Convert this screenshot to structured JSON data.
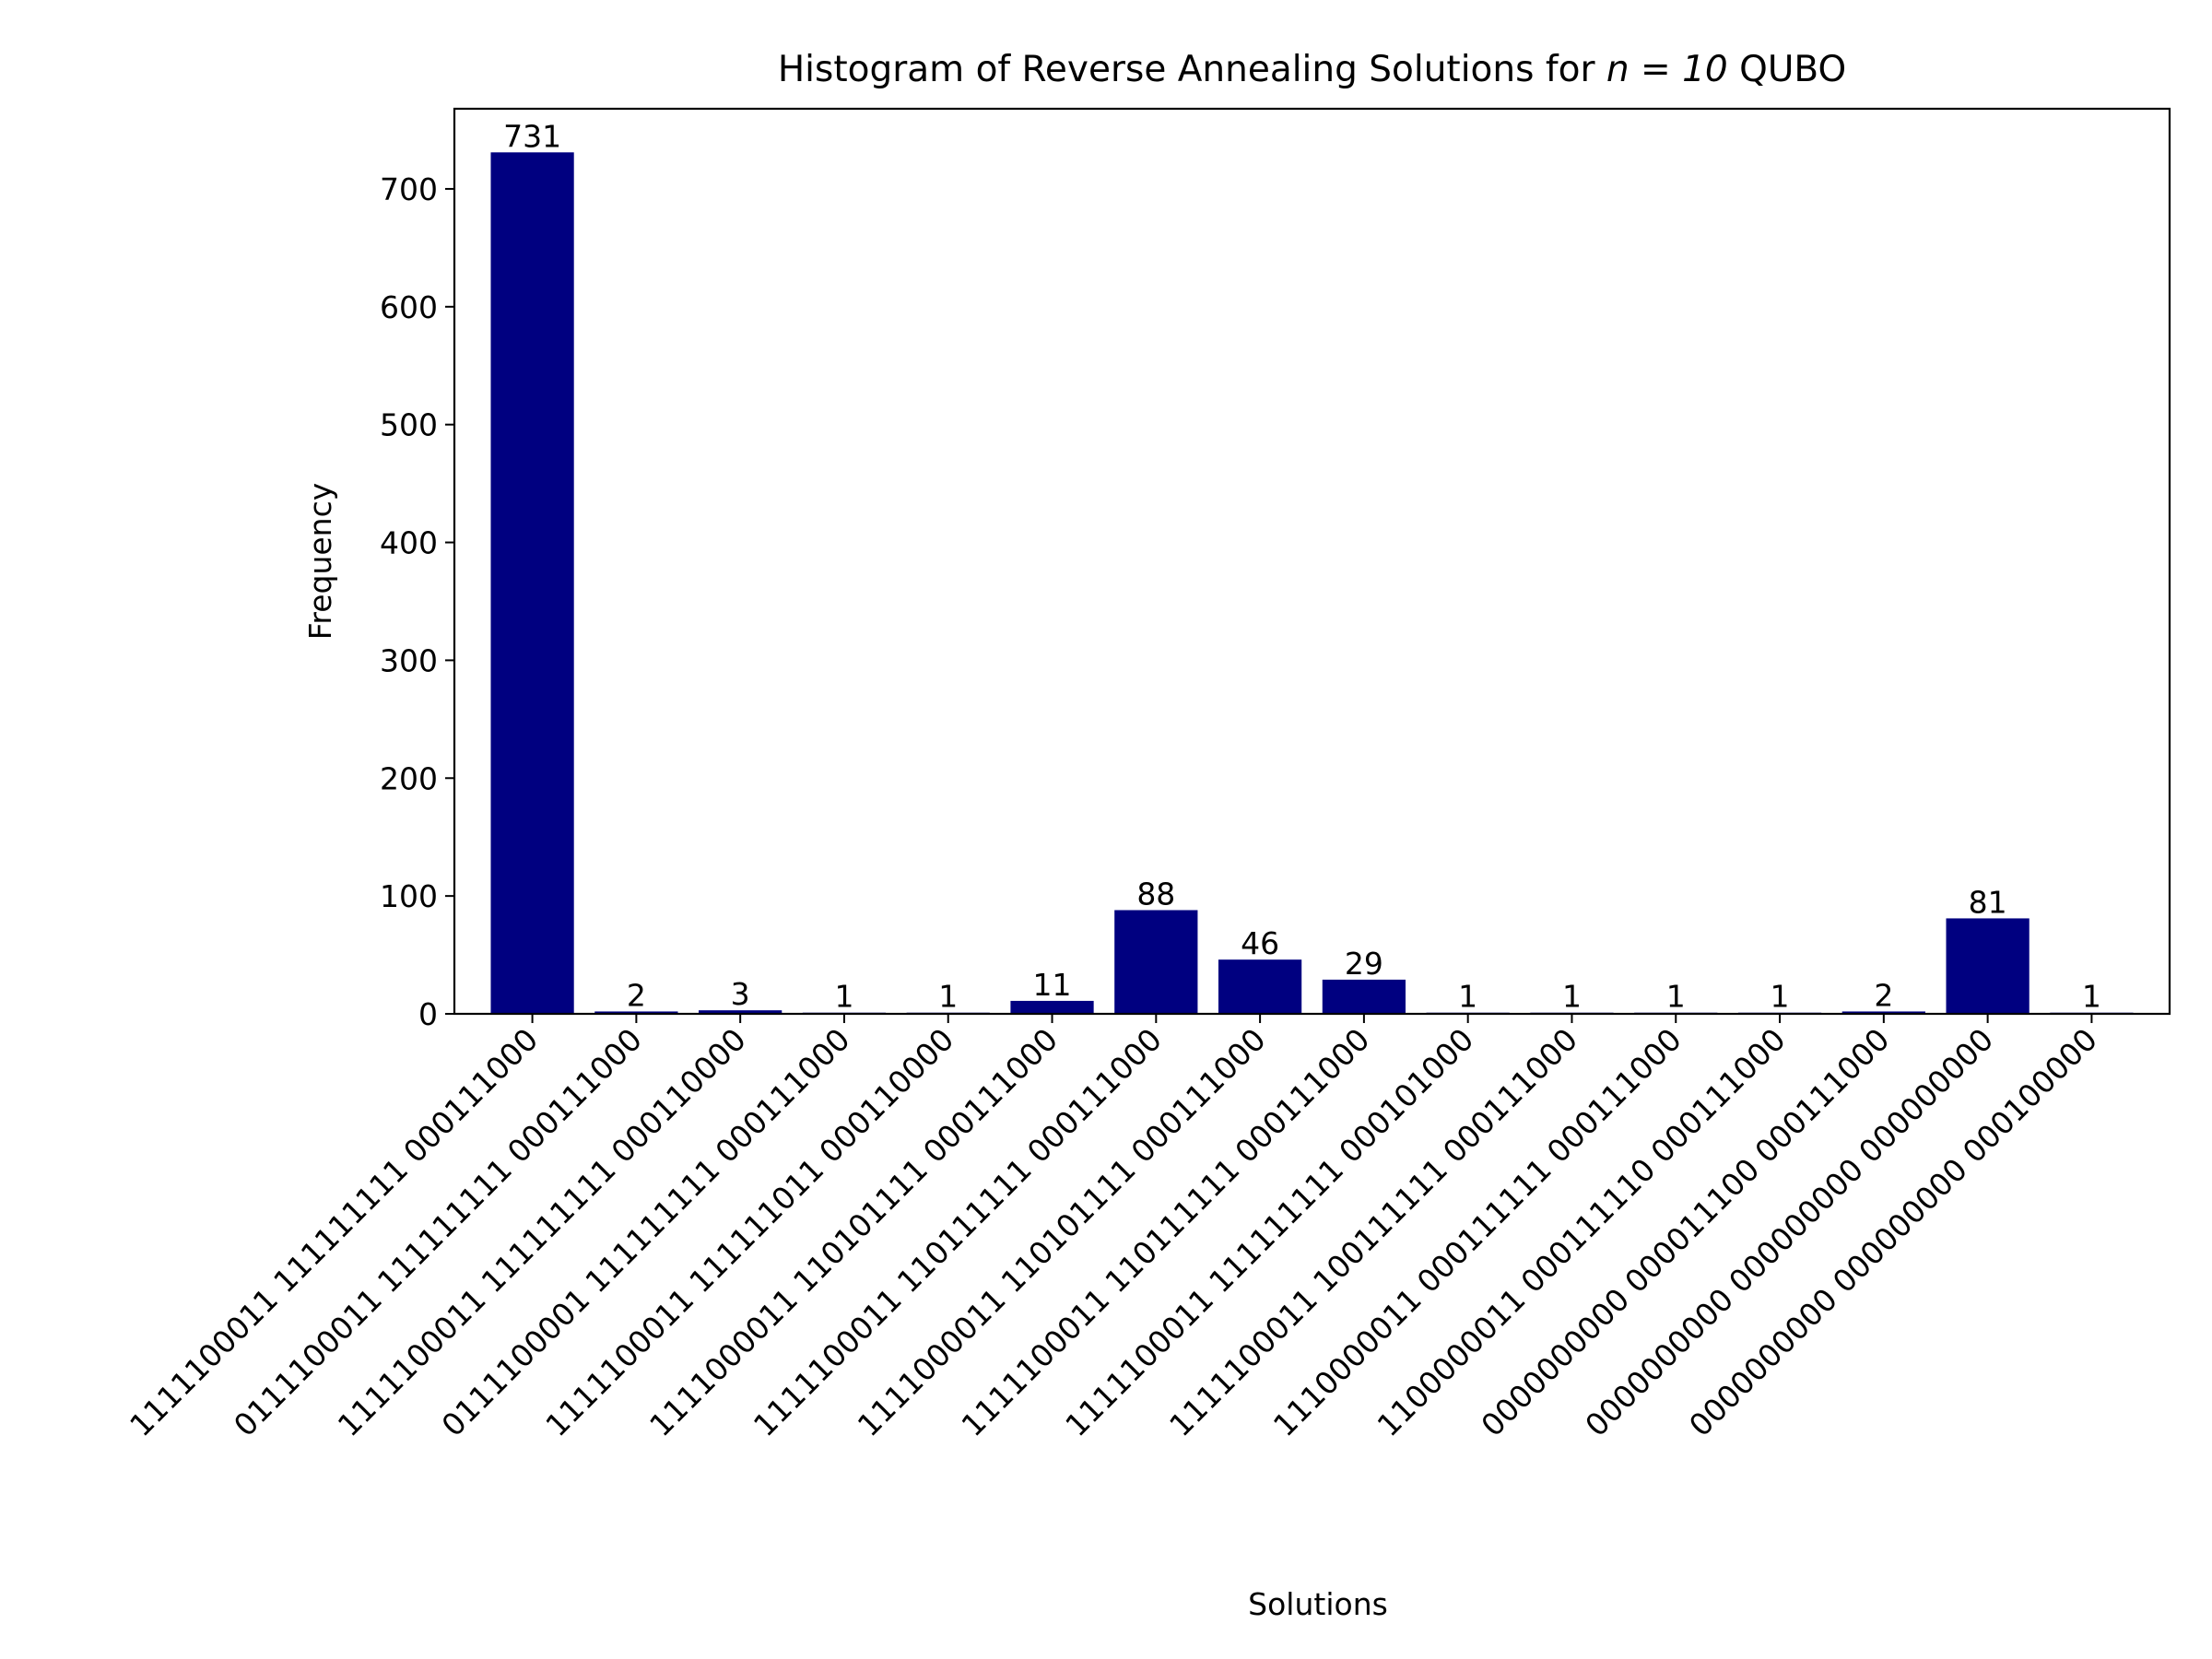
{
  "chart_data": {
    "type": "bar",
    "title": "Histogram of Reverse Annealing Solutions for",
    "title_math": "n = 10",
    "title_suffix": "QUBO",
    "xlabel": "Solutions",
    "ylabel": "Frequency",
    "ylim": [
      0,
      768
    ],
    "yticks": [
      0,
      100,
      200,
      300,
      400,
      500,
      600,
      700
    ],
    "bar_color": "#000080",
    "grid": false,
    "categories": [
      "1111100011 111111111 000111000",
      "0111100011 111111111 000111000",
      "1111100011 111111111 000110000",
      "0111100001 111111111 000111000",
      "1111100011 111111011 000110000",
      "1111000011 110101111 000111000",
      "1111100011 110111111 000111000",
      "1111000011 110101111 000111000",
      "1111100011 110111111 000111000",
      "1111100011 111111111 000101000",
      "1111100011 100111111 000111000",
      "1110000011 000111111 000111000",
      "1100000011 000111110 000111000",
      "0000000000 000011100 000111000",
      "0000000000 000000000 000000000",
      "0000000000 000000000 000100000"
    ],
    "values": [
      731,
      2,
      3,
      1,
      1,
      11,
      88,
      46,
      29,
      1,
      1,
      1,
      1,
      2,
      81,
      1
    ]
  }
}
